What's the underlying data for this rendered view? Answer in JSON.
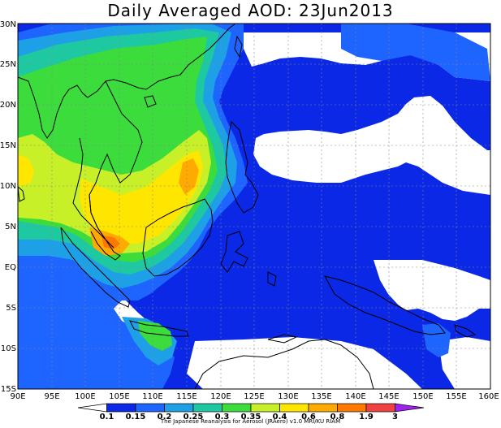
{
  "title": "Daily Averaged AOD: 23Jun2013",
  "credit": "The Japanese Reanalysis for Aerosol (JRAero) v1.0 MRI/KU RIAM",
  "axes": {
    "lon_ticks": [
      "90E",
      "95E",
      "100E",
      "105E",
      "110E",
      "115E",
      "120E",
      "125E",
      "130E",
      "135E",
      "140E",
      "145E",
      "150E",
      "155E",
      "160E"
    ],
    "lat_ticks": [
      "30N",
      "25N",
      "20N",
      "15N",
      "10N",
      "5N",
      "EQ",
      "5S",
      "10S",
      "15S"
    ]
  },
  "colorbar": {
    "labels": [
      "0.1",
      "0.15",
      "0.2",
      "0.25",
      "0.3",
      "0.35",
      "0.4",
      "0.6",
      "0.8",
      "1.9",
      "3"
    ],
    "colors": [
      "#ffffff",
      "#0a28e6",
      "#1e64ff",
      "#1ea0e6",
      "#1ec8a0",
      "#3cdc3c",
      "#c8f028",
      "#ffe600",
      "#ffaa00",
      "#ff7800",
      "#f04040",
      "#a020f0"
    ]
  },
  "chart_data": {
    "type": "heatmap",
    "variable": "AOD",
    "date": "23Jun2013",
    "lon_range": [
      90,
      160
    ],
    "lat_range": [
      -15,
      30
    ],
    "levels": [
      0.1,
      0.15,
      0.2,
      0.25,
      0.3,
      0.35,
      0.4,
      0.6,
      0.8,
      1.9,
      3
    ],
    "grid": true
  }
}
